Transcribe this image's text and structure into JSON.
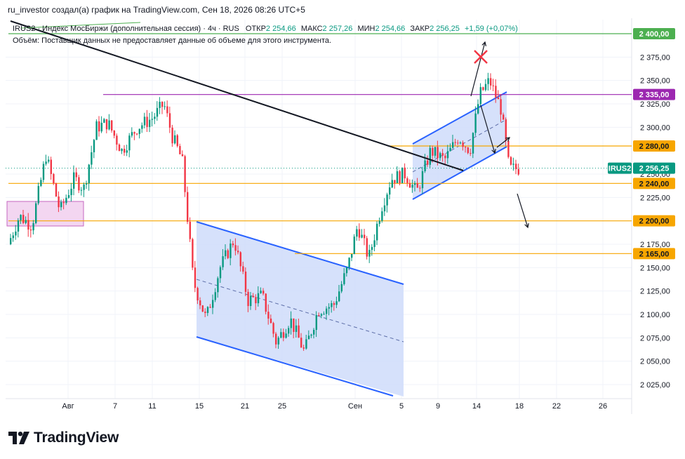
{
  "header": {
    "credit": "ru_investor создал(а) график на TradingView.com, Сен 18, 2026 08:26 UTC+5"
  },
  "instrument": {
    "title": "IRUS2 · Индекс МосБиржи (дополнительная сессия) · 4ч · RUS",
    "open_label": "ОТКР",
    "open": "2 254,66",
    "high_label": "МАКС",
    "high": "2 257,26",
    "low_label": "МИН",
    "low": "2 254,66",
    "close_label": "ЗАКР",
    "close": "2 256,25",
    "change": "+1,59 (+0,07%)",
    "volume_note": "Объём: Поставщик данных не предоставляет данные об объеме для этого инструмента."
  },
  "brand": {
    "name": "TradingView",
    "logo_icon": "tradingview-logo-icon"
  },
  "colors": {
    "up": "#089981",
    "down": "#f23645",
    "orange_level": "#f7a600",
    "purple_level": "#9c27b0",
    "green_level": "#4caf50",
    "channel_stroke": "#2962ff",
    "channel_fill": "#cfdcfa",
    "current_badge": "#089981"
  },
  "chart_data": {
    "type": "candlestick",
    "symbol": "IRUS2",
    "current_price": 2256.25,
    "current_price_label": "2 256,25",
    "y_axis": {
      "range": [
        2010,
        2415
      ],
      "ticks": [
        2025,
        2050,
        2075,
        2100,
        2125,
        2150,
        2175,
        2225,
        2250,
        2300,
        2325,
        2350,
        2375
      ],
      "tick_labels": [
        "2 025,00",
        "2 050,00",
        "2 075,00",
        "2 100,00",
        "2 125,00",
        "2 150,00",
        "2 175,00",
        "2 225,00",
        "2 250,00",
        "2 300,00",
        "2 325,00",
        "2 350,00",
        "2 375,00"
      ]
    },
    "x_axis": {
      "tick_labels": [
        "Авг",
        "7",
        "11",
        "15",
        "21",
        "25",
        "Сен",
        "5",
        "9",
        "14",
        "18",
        "22",
        "26"
      ]
    },
    "levels": [
      {
        "value": 2400,
        "label": "2 400,00",
        "color": "#4caf50"
      },
      {
        "value": 2335,
        "label": "2 335,00",
        "color": "#9c27b0"
      },
      {
        "value": 2280,
        "label": "2 280,00",
        "color": "#f7a600"
      },
      {
        "value": 2240,
        "label": "2 240,00",
        "color": "#f7a600"
      },
      {
        "value": 2200,
        "label": "2 200,00",
        "color": "#f7a600"
      },
      {
        "value": 2165,
        "label": "2 165,00",
        "color": "#f7a600"
      }
    ],
    "annotations": [
      {
        "type": "trend_line",
        "color": "#131722"
      },
      {
        "type": "zone",
        "color": "#e9b6e6"
      },
      {
        "type": "descending_channel",
        "color": "#2962ff"
      },
      {
        "type": "ascending_channel",
        "color": "#2962ff"
      },
      {
        "type": "arrows",
        "color": "#131722"
      },
      {
        "type": "cross_mark",
        "color": "#f23645"
      }
    ]
  }
}
